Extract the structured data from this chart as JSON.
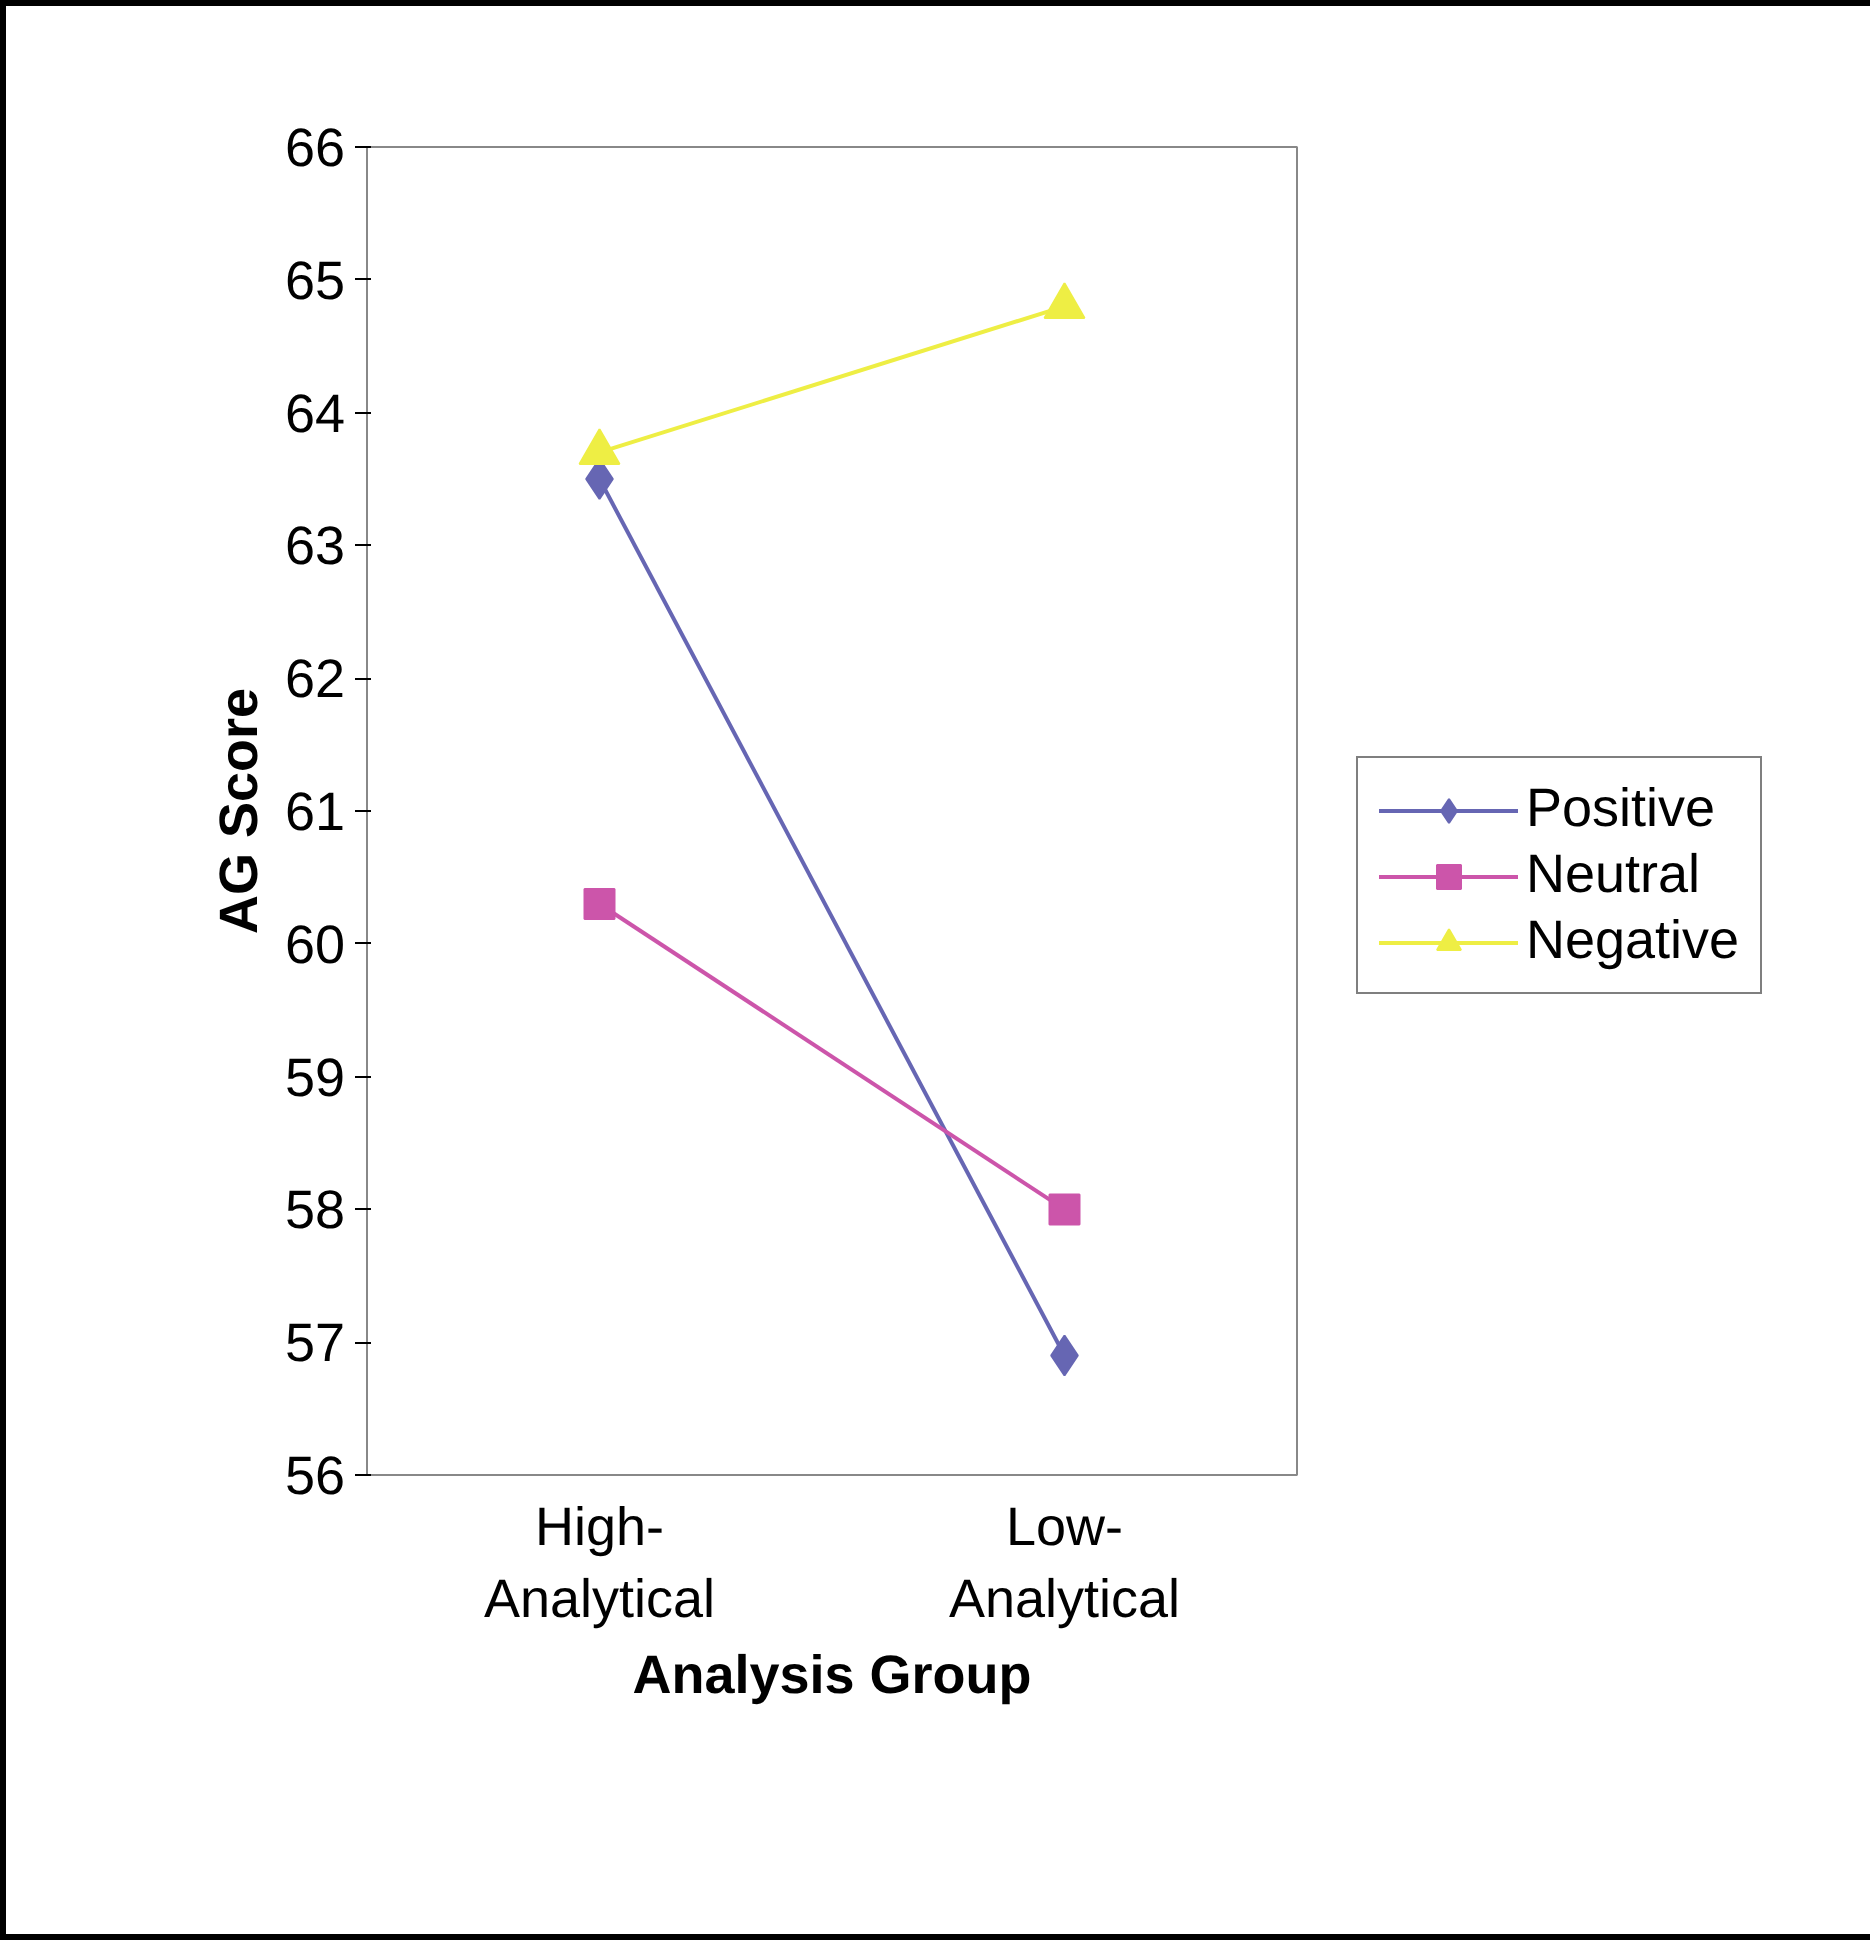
{
  "chart_data": {
    "type": "line",
    "xlabel": "Analysis Group",
    "ylabel": "AG Score",
    "categories": [
      "High-\nAnalytical",
      "Low-\nAnalytical"
    ],
    "ylim": [
      56,
      66
    ],
    "yticks": [
      56,
      57,
      58,
      59,
      60,
      61,
      62,
      63,
      64,
      65,
      66
    ],
    "grid": false,
    "legend": "right",
    "series": [
      {
        "name": "Positive",
        "color": "#6666b3",
        "marker": "diamond",
        "values": [
          63.5,
          56.9
        ]
      },
      {
        "name": "Neutral",
        "color": "#cc55aa",
        "marker": "square",
        "values": [
          60.3,
          58.0
        ]
      },
      {
        "name": "Negative",
        "color": "#eeee44",
        "marker": "triangle",
        "values": [
          63.7,
          64.8
        ]
      }
    ]
  }
}
